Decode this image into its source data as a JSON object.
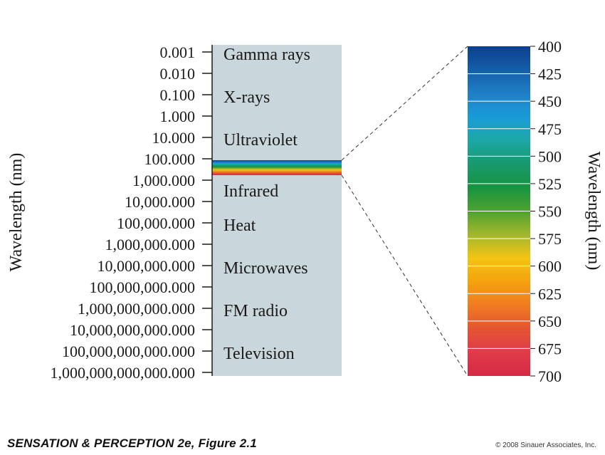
{
  "figure": {
    "left_axis_label": "Wavelength (nm)",
    "right_axis_label": "Wavelength (nm)",
    "spectrum_ticks": [
      "0.001",
      "0.010",
      "0.100",
      "1.000",
      "10.000",
      "100.000",
      "1,000.000",
      "10,000.000",
      "100,000.000",
      "1,000,000.000",
      "10,000,000.000",
      "100,000,000.000",
      "1,000,000,000.000",
      "10,000,000,000.000",
      "100,000,000,000.000",
      "1,000,000,000,000.000"
    ],
    "bands": [
      {
        "name": "Gamma rays",
        "tick_index": 0.1
      },
      {
        "name": "X-rays",
        "tick_index": 2.1
      },
      {
        "name": "Ultraviolet",
        "tick_index": 4.1
      },
      {
        "name": "Infrared",
        "tick_index": 6.5
      },
      {
        "name": "Heat",
        "tick_index": 8.1
      },
      {
        "name": "Microwaves",
        "tick_index": 10.1
      },
      {
        "name": "FM radio",
        "tick_index": 12.1
      },
      {
        "name": "Television",
        "tick_index": 14.1
      }
    ],
    "visible_range_tick_index": [
      5.15,
      5.85
    ],
    "visible_ticks": [
      "400",
      "425",
      "450",
      "475",
      "500",
      "525",
      "550",
      "575",
      "600",
      "625",
      "650",
      "675",
      "700"
    ],
    "visible_colors": [
      "#0c3f8e",
      "#155ea8",
      "#1f7fc6",
      "#1a9bd7",
      "#1ca8a6",
      "#18996d",
      "#169440",
      "#4ea22f",
      "#a3b72e",
      "#f3c412",
      "#f5a20e",
      "#ef7b22",
      "#e45531",
      "#df3b4a",
      "#d62a45"
    ],
    "colors": {
      "panel": "#c9d6db",
      "ink": "#1a1a1a"
    }
  },
  "footer": {
    "caption": "SENSATION & PERCEPTION 2e, Figure 2.1",
    "copyright": "© 2008 Sinauer Associates, Inc."
  }
}
